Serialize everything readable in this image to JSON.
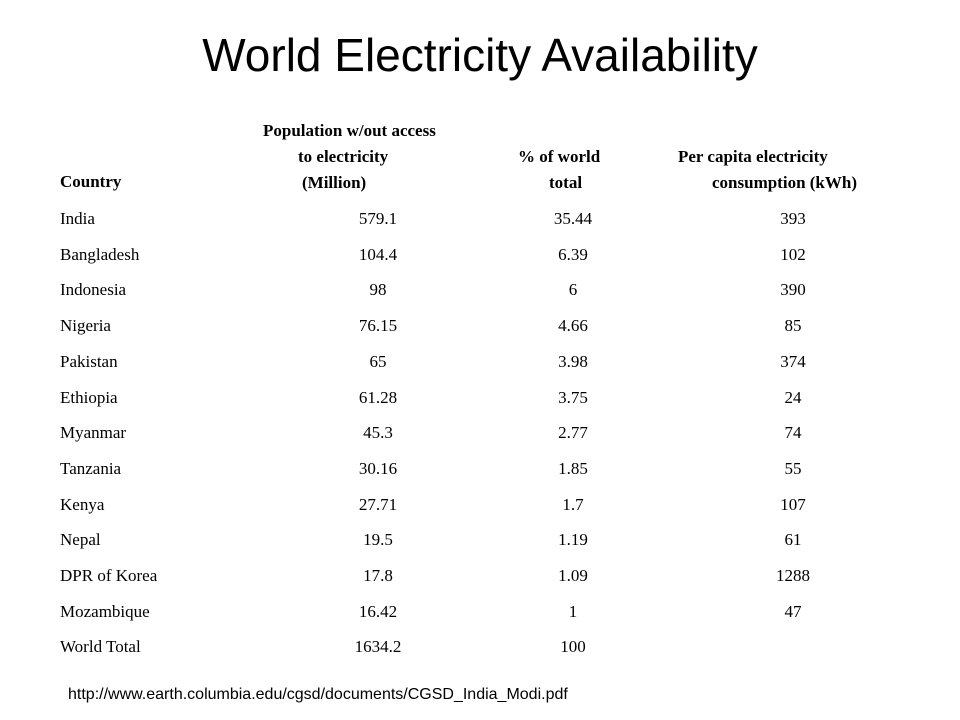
{
  "title": "World Electricity Availability",
  "table": {
    "headers": {
      "country": "Country",
      "pop_line1": "Population w/out access",
      "pop_line2": "to electricity",
      "pop_line3": "(Million)",
      "pct_line1": "% of world",
      "pct_line2": "total",
      "cons_line1": "Per capita electricity",
      "cons_line2": "consumption (kWh)"
    },
    "rows": [
      {
        "country": "India",
        "pop": "579.1",
        "pct": "35.44",
        "cons": "393"
      },
      {
        "country": "Bangladesh",
        "pop": "104.4",
        "pct": "6.39",
        "cons": "102"
      },
      {
        "country": "Indonesia",
        "pop": "98",
        "pct": "6",
        "cons": "390"
      },
      {
        "country": "Nigeria",
        "pop": "76.15",
        "pct": "4.66",
        "cons": "85"
      },
      {
        "country": "Pakistan",
        "pop": "65",
        "pct": "3.98",
        "cons": "374"
      },
      {
        "country": "Ethiopia",
        "pop": "61.28",
        "pct": "3.75",
        "cons": "24"
      },
      {
        "country": "Myanmar",
        "pop": "45.3",
        "pct": "2.77",
        "cons": "74"
      },
      {
        "country": "Tanzania",
        "pop": "30.16",
        "pct": "1.85",
        "cons": "55"
      },
      {
        "country": "Kenya",
        "pop": "27.71",
        "pct": "1.7",
        "cons": "107"
      },
      {
        "country": "Nepal",
        "pop": "19.5",
        "pct": "1.19",
        "cons": "61"
      },
      {
        "country": "DPR of Korea",
        "pop": "17.8",
        "pct": "1.09",
        "cons": "1288"
      },
      {
        "country": "Mozambique",
        "pop": "16.42",
        "pct": "1",
        "cons": "47"
      },
      {
        "country": "World Total",
        "pop": "1634.2",
        "pct": "100",
        "cons": ""
      }
    ]
  },
  "source": "http://www.earth.columbia.edu/cgsd/documents/CGSD_India_Modi.pdf"
}
